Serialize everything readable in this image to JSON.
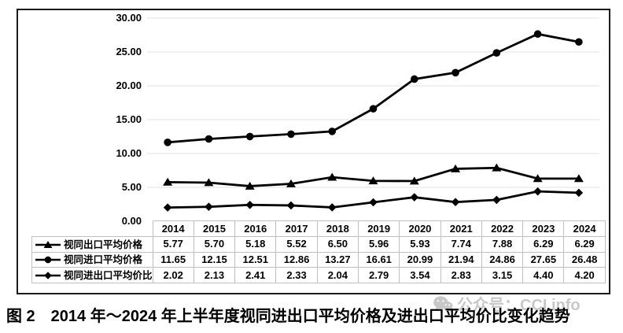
{
  "caption": "图 2　2014 年～2024 年上半年度视同进出口平均价格及进出口平均价比变化趋势",
  "watermark": {
    "icon": "wechat-icon",
    "text": "公众号：CCI.info",
    "color": "#c8c8c8"
  },
  "chart_data": {
    "type": "line",
    "title": "",
    "categories": [
      "2014",
      "2015",
      "2016",
      "2017",
      "2018",
      "2019",
      "2020",
      "2021",
      "2022",
      "2023",
      "2024"
    ],
    "series": [
      {
        "name": "视同出口平均价格",
        "marker": "triangle",
        "values": [
          5.77,
          5.7,
          5.18,
          5.52,
          6.5,
          5.96,
          5.93,
          7.74,
          7.88,
          6.29,
          6.29
        ]
      },
      {
        "name": "视同进口平均价格",
        "marker": "circle",
        "values": [
          11.65,
          12.15,
          12.51,
          12.86,
          13.27,
          16.61,
          20.99,
          21.94,
          24.86,
          27.65,
          26.48
        ]
      },
      {
        "name": "视同进出口平均价比",
        "marker": "diamond",
        "values": [
          2.02,
          2.13,
          2.41,
          2.33,
          2.04,
          2.79,
          3.54,
          2.83,
          3.15,
          4.4,
          4.2
        ]
      }
    ],
    "ylim": [
      0,
      30
    ],
    "ytick_step": 5,
    "ytick_labels": [
      "0.00",
      "5.00",
      "10.00",
      "15.00",
      "20.00",
      "25.00",
      "30.00"
    ],
    "value_format_decimals": 2,
    "grid": true,
    "legend_position": "table-left",
    "line_color": "#000000",
    "grid_color": "#ebebeb",
    "table_border_color": "#bfbfbf"
  }
}
